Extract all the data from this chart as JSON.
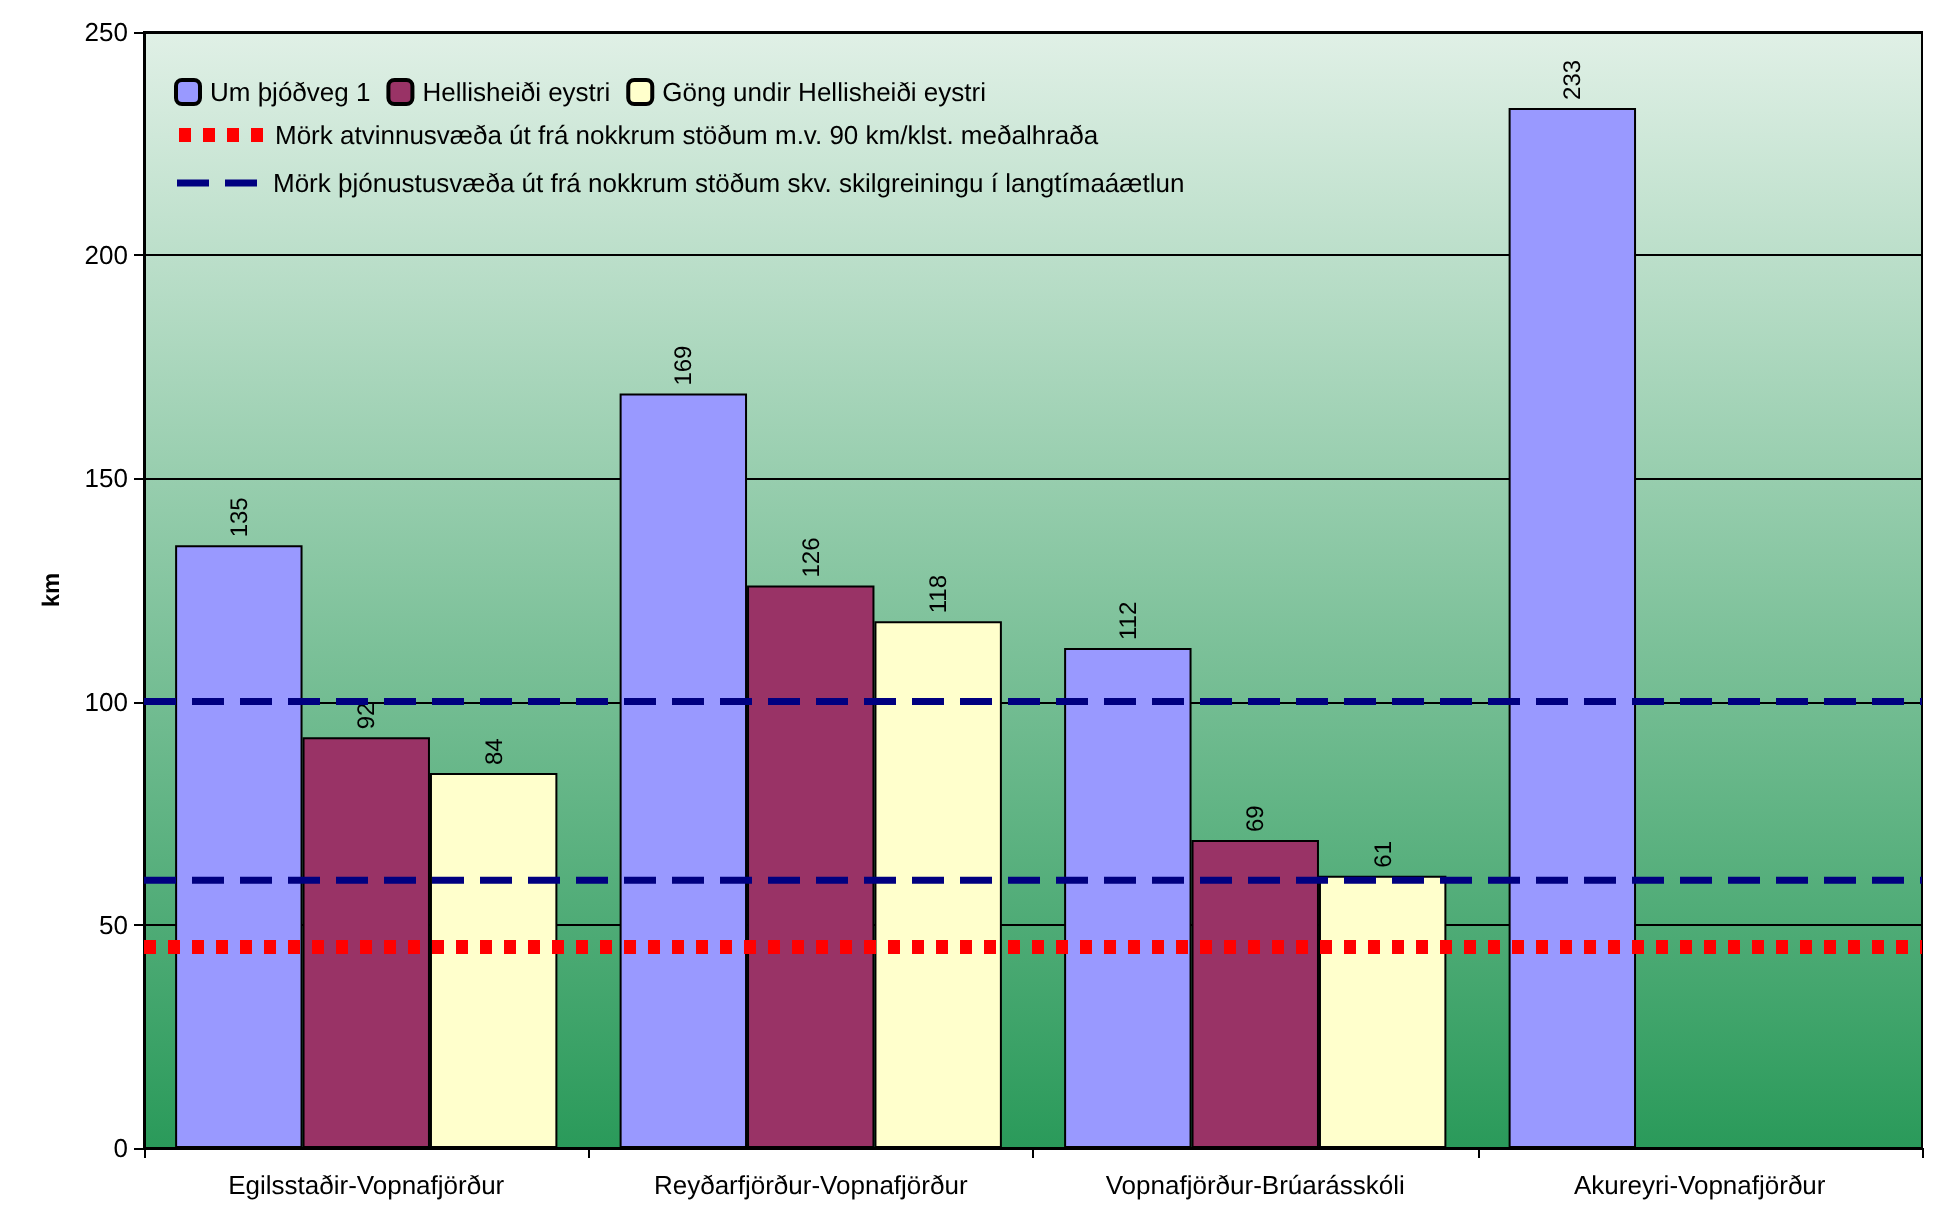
{
  "chart_data": {
    "type": "bar",
    "ylabel": "km",
    "categories": [
      "Egilsstaðir-Vopnafjörður",
      "Reyðarfjörður-Vopnafjörður",
      "Vopnafjörður-Brúarásskóli",
      "Akureyri-Vopnafjörður"
    ],
    "series": [
      {
        "name": "Um þjóðveg 1",
        "color": "#9999ff",
        "values": [
          135,
          169,
          112,
          233
        ]
      },
      {
        "name": "Hellisheiði eystri",
        "color": "#993366",
        "values": [
          92,
          126,
          69,
          null
        ]
      },
      {
        "name": "Göng undir Hellisheiði eystri",
        "color": "#ffffcc",
        "values": [
          84,
          118,
          61,
          null
        ]
      }
    ],
    "ylim": [
      0,
      250
    ],
    "yticks": [
      0,
      50,
      100,
      150,
      200,
      250
    ],
    "grid": "y",
    "data_labels": true,
    "legend": "top left",
    "ref_lines": [
      {
        "axis": "y",
        "value": 45,
        "label": "Mörk atvinnusvæða út frá nokkrum stöðum m.v. 90 km/klst. meðalhraða",
        "color": "#ff0000",
        "line_style": "dotted"
      },
      {
        "axis": "y",
        "value": 100,
        "label": "Mörk þjónustusvæða út frá nokkrum stöðum skv. skilgreiningu í langtímaáætlun",
        "color": "#000080",
        "line_style": "dashed"
      },
      {
        "axis": "y",
        "value": 60,
        "color": "#000080",
        "line_style": "dashed"
      }
    ]
  }
}
